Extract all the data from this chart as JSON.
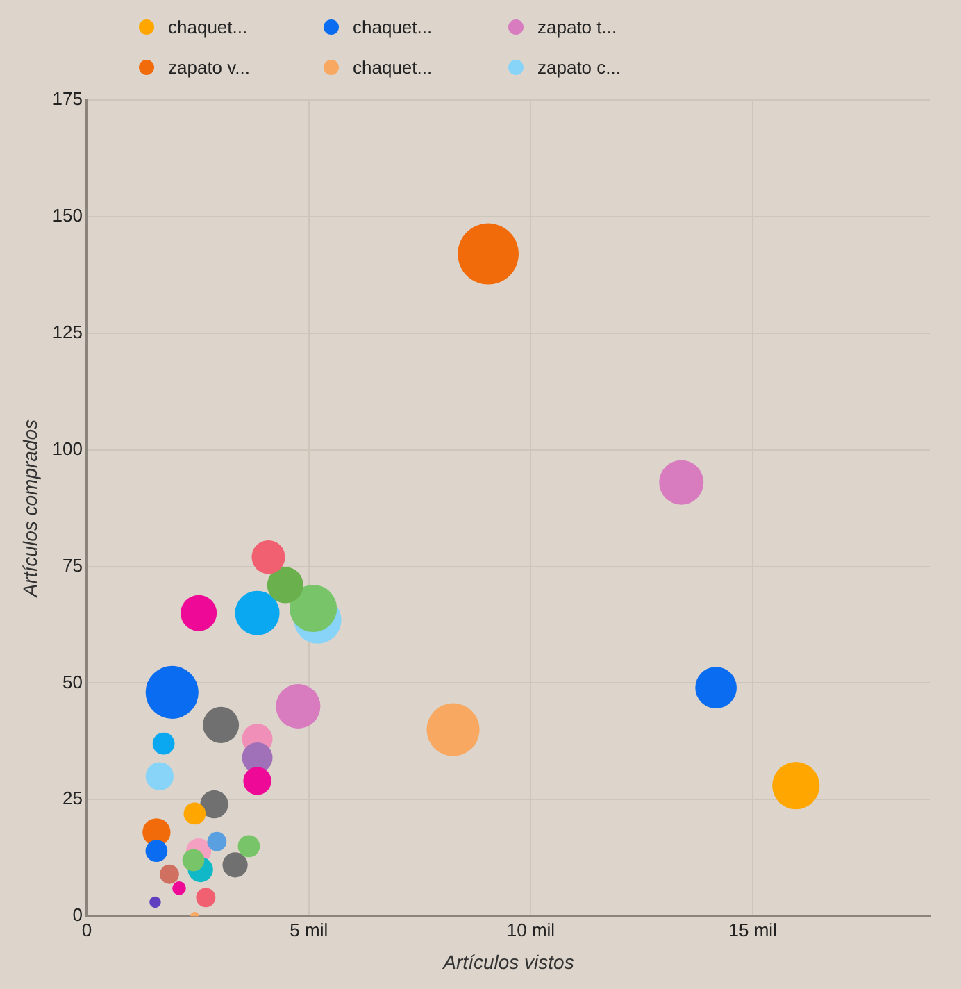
{
  "chart_data": {
    "type": "bubble",
    "xlabel": "Artículos vistos",
    "ylabel": "Artículos comprados",
    "xlim": [
      0,
      19
    ],
    "ylim": [
      0,
      175
    ],
    "xticks": [
      0,
      {
        "value": 5,
        "label": "5 mil"
      },
      {
        "value": 10,
        "label": "10 mil"
      },
      {
        "value": 15,
        "label": "15 mil"
      }
    ],
    "yticks": [
      0,
      25,
      50,
      75,
      100,
      125,
      150,
      175
    ],
    "grid": true,
    "legend": "top",
    "series": [
      {
        "name": "chaquet...",
        "color": "#ffa600",
        "x": [
          15.97
        ],
        "values": [
          28
        ],
        "sizes": [
          0.6
        ]
      },
      {
        "name": "chaquet...",
        "color": "#0a6cf0",
        "x": [
          14.17
        ],
        "values": [
          49
        ],
        "sizes": [
          0.46
        ]
      },
      {
        "name": "zapato t...",
        "color": "#d87cbf",
        "x": [
          13.39
        ],
        "values": [
          93
        ],
        "sizes": [
          0.53
        ]
      },
      {
        "name": "zapato v...",
        "color": "#f26b0a",
        "x": [
          9.04
        ],
        "values": [
          142
        ],
        "sizes": [
          1
        ]
      },
      {
        "name": "chaquet...",
        "color": "#f8a860",
        "x": [
          8.25
        ],
        "values": [
          40
        ],
        "sizes": [
          0.75
        ]
      },
      {
        "name": "zapato c...",
        "color": "#88d4f8",
        "x": [
          5.2
        ],
        "values": [
          63.5
        ],
        "sizes": [
          0.6
        ]
      },
      {
        "color": "#f06070",
        "x": [
          4.09
        ],
        "values": [
          77
        ],
        "sizes": [
          0.3
        ]
      },
      {
        "color": "#6ab04c",
        "x": [
          4.47
        ],
        "values": [
          71
        ],
        "sizes": [
          0.35
        ]
      },
      {
        "color": "#78c468",
        "x": [
          5.1
        ],
        "values": [
          66
        ],
        "sizes": [
          0.6
        ]
      },
      {
        "color": "#ee0a96",
        "x": [
          2.52
        ],
        "values": [
          65
        ],
        "sizes": [
          0.35
        ]
      },
      {
        "color": "#0aa8f0",
        "x": [
          3.84
        ],
        "values": [
          65
        ],
        "sizes": [
          0.53
        ]
      },
      {
        "color": "#0a6cf0",
        "x": [
          1.92
        ],
        "values": [
          48
        ],
        "sizes": [
          0.75
        ]
      },
      {
        "color": "#d87cbf",
        "x": [
          4.76
        ],
        "values": [
          45
        ],
        "sizes": [
          0.53
        ]
      },
      {
        "color": "#707070",
        "x": [
          3.02
        ],
        "values": [
          41
        ],
        "sizes": [
          0.35
        ]
      },
      {
        "color": "#0aa8f0",
        "x": [
          1.73
        ],
        "values": [
          37
        ],
        "sizes": [
          0.13
        ]
      },
      {
        "color": "#88d4f8",
        "x": [
          1.64
        ],
        "values": [
          30
        ],
        "sizes": [
          0.21
        ]
      },
      {
        "color": "#f090b8",
        "x": [
          3.84
        ],
        "values": [
          38
        ],
        "sizes": [
          0.25
        ]
      },
      {
        "color": "#a070b8",
        "x": [
          3.84
        ],
        "values": [
          34
        ],
        "sizes": [
          0.25
        ]
      },
      {
        "color": "#ee0a96",
        "x": [
          3.84
        ],
        "values": [
          29
        ],
        "sizes": [
          0.21
        ]
      },
      {
        "color": "#707070",
        "x": [
          2.87
        ],
        "values": [
          24
        ],
        "sizes": [
          0.21
        ]
      },
      {
        "color": "#ffa600",
        "x": [
          2.43
        ],
        "values": [
          22
        ],
        "sizes": [
          0.13
        ]
      },
      {
        "color": "#f26b0a",
        "x": [
          1.57
        ],
        "values": [
          18
        ],
        "sizes": [
          0.21
        ]
      },
      {
        "color": "#f4a0c0",
        "x": [
          2.52
        ],
        "values": [
          14
        ],
        "sizes": [
          0.17
        ]
      },
      {
        "color": "#0a6cf0",
        "x": [
          1.57
        ],
        "values": [
          14
        ],
        "sizes": [
          0.13
        ]
      },
      {
        "color": "#5aa0e0",
        "x": [
          2.93
        ],
        "values": [
          16
        ],
        "sizes": [
          0.1
        ]
      },
      {
        "color": "#78c468",
        "x": [
          3.65
        ],
        "values": [
          15
        ],
        "sizes": [
          0.13
        ]
      },
      {
        "color": "#707070",
        "x": [
          3.34
        ],
        "values": [
          11
        ],
        "sizes": [
          0.17
        ]
      },
      {
        "color": "#10b8c8",
        "x": [
          2.56
        ],
        "values": [
          10
        ],
        "sizes": [
          0.17
        ]
      },
      {
        "color": "#78c468",
        "x": [
          2.4
        ],
        "values": [
          12
        ],
        "sizes": [
          0.13
        ]
      },
      {
        "color": "#d07060",
        "x": [
          1.86
        ],
        "values": [
          9
        ],
        "sizes": [
          0.1
        ]
      },
      {
        "color": "#f06070",
        "x": [
          2.68
        ],
        "values": [
          4
        ],
        "sizes": [
          0.1
        ]
      },
      {
        "color": "#ee0a96",
        "x": [
          2.08
        ],
        "values": [
          6
        ],
        "sizes": [
          0.05
        ]
      },
      {
        "color": "#6040c0",
        "x": [
          1.54
        ],
        "values": [
          3
        ],
        "sizes": [
          0.035
        ]
      },
      {
        "color": "#f8a860",
        "x": [
          2.43
        ],
        "values": [
          0
        ],
        "sizes": [
          0.02
        ]
      }
    ]
  }
}
